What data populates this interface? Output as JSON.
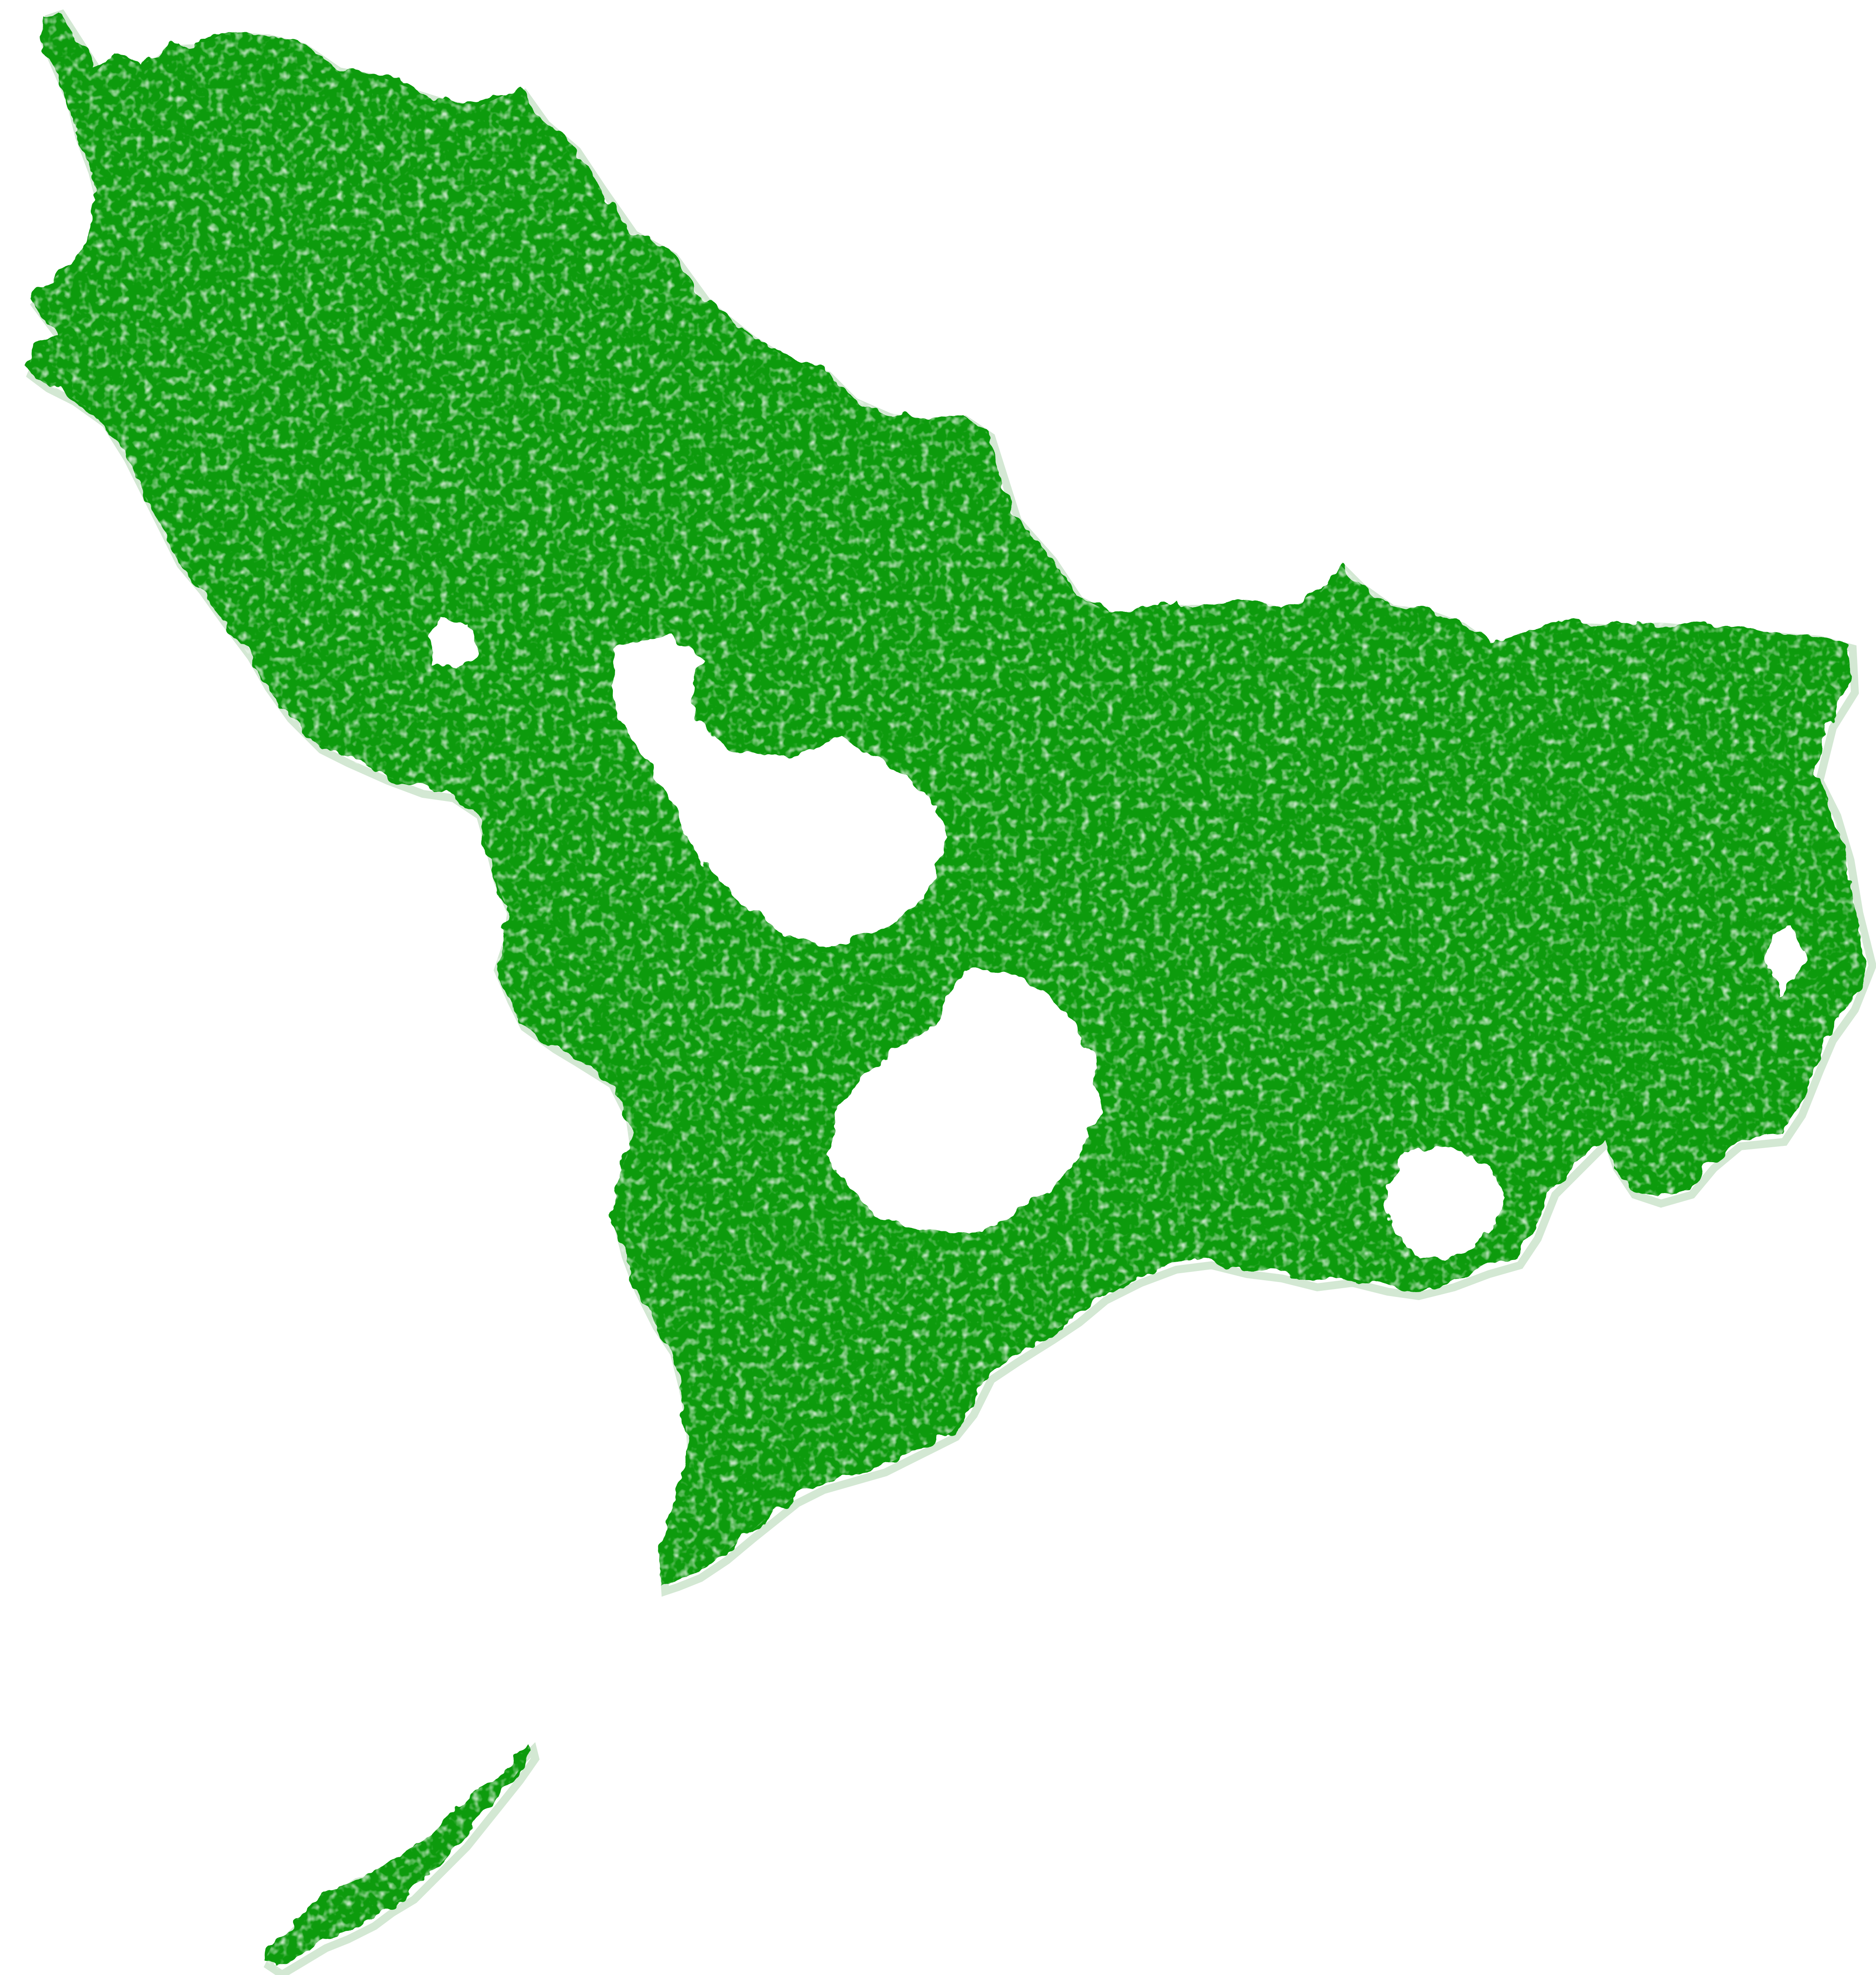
{
  "map": {
    "theme": "vegetation-cover",
    "colors": {
      "vegetation": "#0a9b0a",
      "background": "#ffffff",
      "shoreline_halo": "#cfe6cf"
    },
    "features": [
      {
        "id": "mainland",
        "kind": "landmass"
      },
      {
        "id": "southwest-island",
        "kind": "island"
      }
    ],
    "clearings": [
      {
        "id": "central-clearing"
      },
      {
        "id": "south-central-clearing"
      },
      {
        "id": "southeast-clearing"
      }
    ]
  }
}
